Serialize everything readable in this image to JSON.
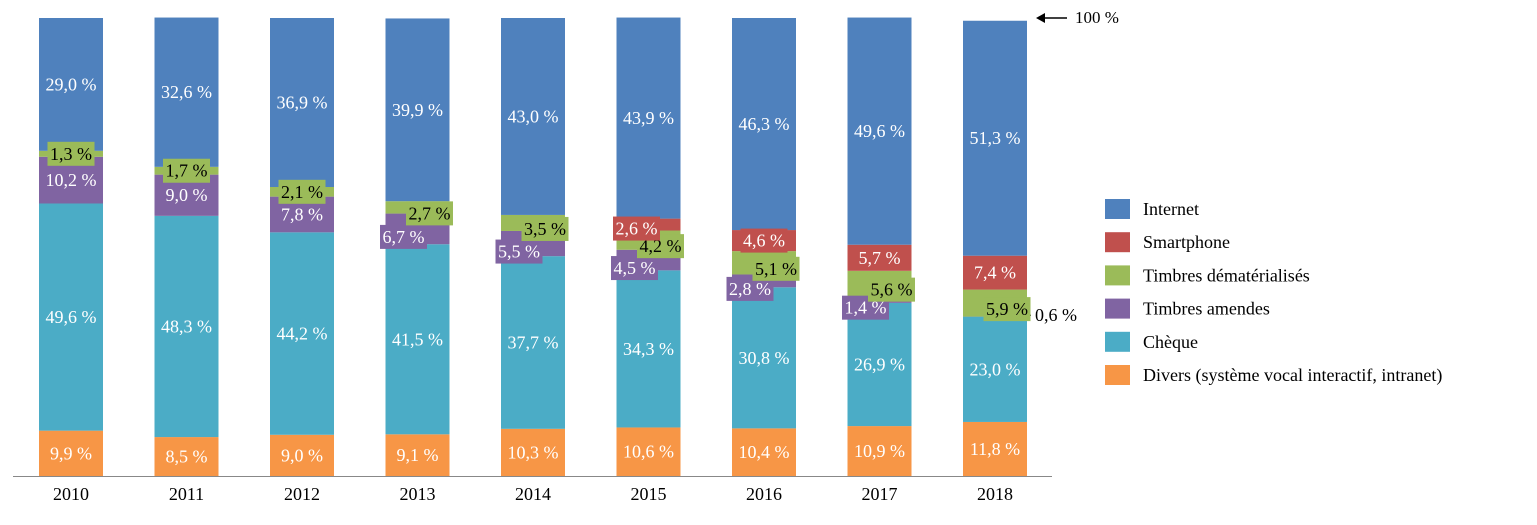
{
  "chart_data": {
    "type": "bar",
    "stacked": true,
    "normalized": true,
    "title": "",
    "xlabel": "",
    "ylabel": "",
    "ylim": [
      0,
      100
    ],
    "grid": false,
    "legend_position": "right",
    "categories": [
      "2010",
      "2011",
      "2012",
      "2013",
      "2014",
      "2015",
      "2016",
      "2017",
      "2018"
    ],
    "series": [
      {
        "name": "Divers (système vocal interactif, intranet)",
        "color": "#f79646",
        "values": [
          9.9,
          8.5,
          9.0,
          9.1,
          10.3,
          10.6,
          10.4,
          10.9,
          11.8
        ],
        "labels": [
          "9,9 %",
          "8,5 %",
          "9,0 %",
          "9,1 %",
          "10,3 %",
          "10,6 %",
          "10,4 %",
          "10,9 %",
          "11,8 %"
        ]
      },
      {
        "name": "Chèque",
        "color": "#4bacc6",
        "values": [
          49.6,
          48.3,
          44.2,
          41.5,
          37.7,
          34.3,
          30.8,
          26.9,
          23.0
        ],
        "labels": [
          "49,6 %",
          "48,3 %",
          "44,2 %",
          "41,5 %",
          "37,7 %",
          "34,3 %",
          "30,8 %",
          "26,9 %",
          "23,0 %"
        ]
      },
      {
        "name": "Timbres amendes",
        "color": "#8064a2",
        "values": [
          10.2,
          9.0,
          7.8,
          6.7,
          5.5,
          4.5,
          2.8,
          1.4,
          0.6
        ],
        "labels": [
          "10,2 %",
          "9,0 %",
          "7,8 %",
          "6,7 %",
          "5,5 %",
          "4,5 %",
          "2,8 %",
          "1,4 %",
          "0,6 %"
        ]
      },
      {
        "name": "Timbres dématérialisés",
        "color": "#9bbb59",
        "values": [
          1.3,
          1.7,
          2.1,
          2.7,
          3.5,
          4.2,
          5.1,
          5.6,
          5.9
        ],
        "labels": [
          "1,3 %",
          "1,7 %",
          "2,1 %",
          "2,7 %",
          "3,5 %",
          "4,2 %",
          "5,1 %",
          "5,6 %",
          "5,9 %"
        ]
      },
      {
        "name": "Smartphone",
        "color": "#c0504d",
        "values": [
          0,
          0,
          0,
          0,
          0,
          2.6,
          4.6,
          5.7,
          7.4
        ],
        "labels": [
          "",
          "",
          "",
          "",
          "",
          "2,6 %",
          "4,6 %",
          "5,7 %",
          "7,4 %"
        ]
      },
      {
        "name": "Internet",
        "color": "#4f81bd",
        "values": [
          29.0,
          32.6,
          36.9,
          39.9,
          43.0,
          43.9,
          46.3,
          49.6,
          51.3
        ],
        "labels": [
          "29,0 %",
          "32,6 %",
          "36,9 %",
          "39,9 %",
          "43,0 %",
          "43,9 %",
          "46,3 %",
          "49,6 %",
          "51,3 %"
        ]
      }
    ],
    "legend_order": [
      "Internet",
      "Smartphone",
      "Timbres dématérialisés",
      "Timbres amendes",
      "Chèque",
      "Divers (système vocal interactif, intranet)"
    ],
    "annotations": {
      "top_marker": "100 %"
    }
  }
}
